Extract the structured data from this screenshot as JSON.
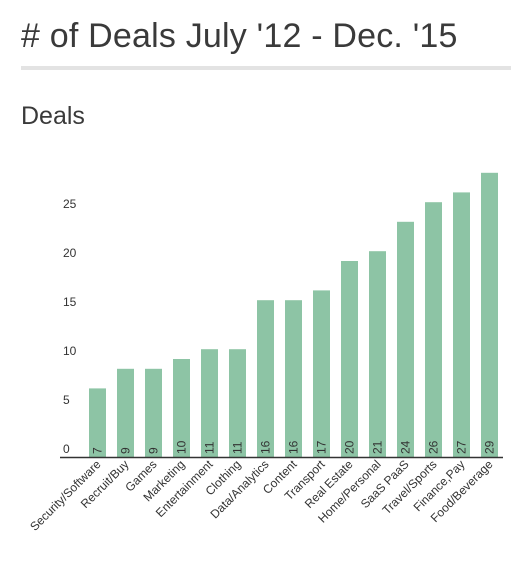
{
  "page": {
    "title": "# of Deals July '12 - Dec. '15"
  },
  "chart_data": {
    "type": "bar",
    "title": "Deals",
    "xlabel": "",
    "ylabel": "",
    "ylim": [
      0,
      29
    ],
    "yticks": [
      0,
      5,
      10,
      15,
      20,
      25
    ],
    "grid": false,
    "categories": [
      "Security/Software",
      "Recruit/Buy",
      "Games",
      "Marketing",
      "Entertainment",
      "Clothing",
      "Data/Analytics",
      "Content",
      "Transport",
      "Real Estate",
      "Home/Personal",
      "SaaS PaaS",
      "Travel/Sports",
      "Finance,Pay",
      "Food/Beverage"
    ],
    "values": [
      7,
      9,
      9,
      10,
      11,
      11,
      16,
      16,
      17,
      20,
      21,
      24,
      26,
      27,
      29
    ],
    "colors": {
      "bar": "#8dc4a5",
      "axis": "#333333",
      "text": "#333333"
    }
  }
}
